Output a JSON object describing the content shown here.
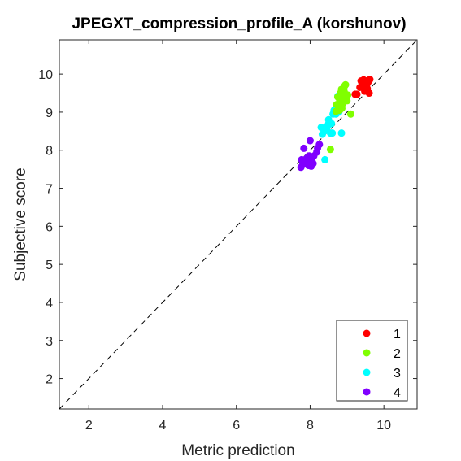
{
  "chart_data": {
    "type": "scatter",
    "title": "JPEGXT_compression_profile_A (korshunov)",
    "xlabel": "Metric prediction",
    "ylabel": "Subjective score",
    "xlim": [
      1.2,
      10.9
    ],
    "ylim": [
      1.2,
      10.9
    ],
    "xticks": [
      2,
      4,
      6,
      8,
      10
    ],
    "yticks": [
      2,
      3,
      4,
      5,
      6,
      7,
      8,
      9,
      10
    ],
    "grid": false,
    "legend_position": "bottom-right",
    "reference_line": {
      "style": "dashed",
      "from": [
        1.2,
        1.2
      ],
      "to": [
        10.9,
        10.9
      ],
      "color": "#000000"
    },
    "series": [
      {
        "name": "1",
        "color": "#ff0000",
        "points": [
          [
            9.22,
            9.47
          ],
          [
            9.27,
            9.47
          ],
          [
            9.35,
            9.65
          ],
          [
            9.38,
            9.82
          ],
          [
            9.4,
            9.78
          ],
          [
            9.42,
            9.72
          ],
          [
            9.45,
            9.65
          ],
          [
            9.45,
            9.85
          ],
          [
            9.5,
            9.7
          ],
          [
            9.55,
            9.75
          ],
          [
            9.55,
            9.62
          ],
          [
            9.58,
            9.8
          ],
          [
            9.62,
            9.86
          ],
          [
            9.6,
            9.5
          ],
          [
            9.48,
            9.55
          ],
          [
            9.52,
            9.82
          ]
        ]
      },
      {
        "name": "2",
        "color": "#80ff00",
        "points": [
          [
            8.55,
            8.02
          ],
          [
            8.7,
            9.02
          ],
          [
            8.72,
            9.2
          ],
          [
            8.75,
            9.4
          ],
          [
            8.8,
            9.32
          ],
          [
            8.82,
            9.5
          ],
          [
            8.85,
            9.6
          ],
          [
            8.86,
            9.1
          ],
          [
            8.88,
            9.22
          ],
          [
            8.9,
            9.4
          ],
          [
            8.92,
            9.55
          ],
          [
            8.93,
            9.68
          ],
          [
            8.96,
            9.72
          ],
          [
            9.0,
            9.3
          ],
          [
            9.02,
            9.45
          ],
          [
            9.1,
            8.95
          ],
          [
            8.8,
            9.05
          ]
        ]
      },
      {
        "name": "3",
        "color": "#00ffff",
        "points": [
          [
            8.3,
            8.6
          ],
          [
            8.33,
            8.42
          ],
          [
            8.38,
            8.5
          ],
          [
            8.4,
            7.75
          ],
          [
            8.45,
            8.55
          ],
          [
            8.48,
            8.65
          ],
          [
            8.5,
            8.8
          ],
          [
            8.55,
            8.45
          ],
          [
            8.58,
            8.7
          ],
          [
            8.62,
            8.95
          ],
          [
            8.65,
            9.05
          ],
          [
            8.7,
            8.95
          ],
          [
            8.72,
            9.15
          ],
          [
            8.75,
            9.42
          ],
          [
            8.78,
            9.0
          ],
          [
            8.82,
            9.25
          ],
          [
            8.85,
            8.45
          ],
          [
            8.6,
            8.45
          ],
          [
            8.5,
            8.7
          ]
        ]
      },
      {
        "name": "4",
        "color": "#8000ff",
        "points": [
          [
            7.75,
            7.55
          ],
          [
            7.77,
            7.75
          ],
          [
            7.8,
            7.62
          ],
          [
            7.83,
            8.05
          ],
          [
            7.85,
            7.72
          ],
          [
            7.9,
            7.68
          ],
          [
            7.92,
            7.8
          ],
          [
            7.95,
            7.6
          ],
          [
            7.97,
            7.85
          ],
          [
            8.0,
            7.65
          ],
          [
            8.02,
            7.75
          ],
          [
            8.03,
            7.58
          ],
          [
            8.05,
            7.72
          ],
          [
            8.08,
            7.65
          ],
          [
            8.1,
            7.85
          ],
          [
            8.18,
            7.95
          ],
          [
            8.2,
            8.05
          ],
          [
            8.25,
            8.15
          ],
          [
            8.0,
            8.25
          ]
        ]
      }
    ]
  }
}
